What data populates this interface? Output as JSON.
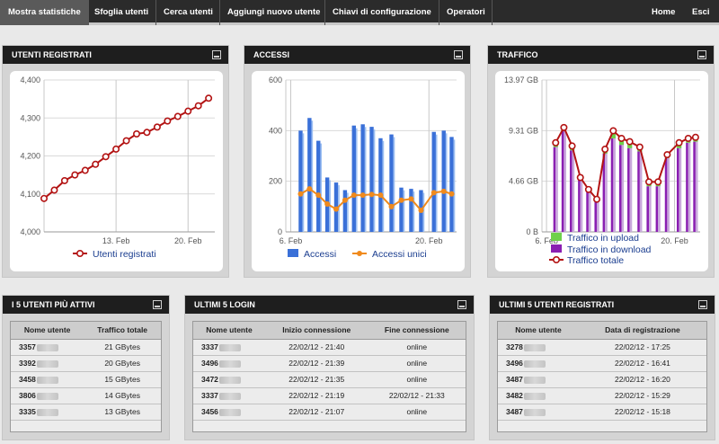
{
  "nav": {
    "items": [
      "Mostra statistiche",
      "Sfoglia utenti",
      "Cerca utenti",
      "Aggiungi nuovo utente",
      "Chiavi di configurazione",
      "Operatori"
    ],
    "right": [
      "Home",
      "Esci"
    ]
  },
  "panels": {
    "registered": {
      "title": "UTENTI REGISTRATI"
    },
    "access": {
      "title": "ACCESSI"
    },
    "traffic": {
      "title": "TRAFFICO"
    },
    "active": {
      "title": "I 5 UTENTI PIÙ ATTIVI"
    },
    "logins": {
      "title": "ULTIMI 5 LOGIN"
    },
    "newusers": {
      "title": "ULTIMI 5 UTENTI REGISTRATI"
    }
  },
  "chart_data": [
    {
      "id": "registered",
      "type": "line",
      "yticks": [
        "4,400",
        "4,300",
        "4,200",
        "4,100",
        "4,000"
      ],
      "ylim": [
        4000,
        4400
      ],
      "xticks": [
        {
          "label": "13. Feb",
          "x": 7
        },
        {
          "label": "20. Feb",
          "x": 14
        }
      ],
      "xlim": [
        0,
        16.6
      ],
      "series": [
        {
          "name": "Utenti registrati",
          "color": "#b31313",
          "x": [
            0,
            1,
            2,
            3,
            4,
            5,
            6,
            7,
            8,
            9,
            10,
            11,
            12,
            13,
            14,
            15,
            16
          ],
          "values": [
            4088,
            4110,
            4135,
            4150,
            4162,
            4178,
            4198,
            4218,
            4240,
            4258,
            4262,
            4276,
            4292,
            4304,
            4318,
            4332,
            4352
          ]
        }
      ],
      "legend": [
        "Utenti registrati"
      ]
    },
    {
      "id": "access",
      "type": "bar",
      "yticks": [
        "600",
        "400",
        "200",
        "0"
      ],
      "ylim": [
        0,
        600
      ],
      "xticks": [
        {
          "label": "6. Feb",
          "x": 0
        },
        {
          "label": "20. Feb",
          "x": 14
        }
      ],
      "xlim": [
        -0.5,
        16.8
      ],
      "series": [
        {
          "name": "Accessi",
          "color": "#3a70d8",
          "x": [
            1,
            1.9,
            2.8,
            3.7,
            4.6,
            5.5,
            6.4,
            7.3,
            8.2,
            9.1,
            10.2,
            11.2,
            12.2,
            13.2,
            14.5,
            15.5,
            16.3
          ],
          "values": [
            400,
            450,
            360,
            215,
            195,
            165,
            420,
            425,
            415,
            370,
            385,
            175,
            170,
            165,
            395,
            400,
            375
          ]
        },
        {
          "name": "Accessi unici",
          "color": "#f08a1c",
          "x": [
            1,
            1.9,
            2.8,
            3.7,
            4.6,
            5.5,
            6.4,
            7.3,
            8.2,
            9.1,
            10.2,
            11.2,
            12.2,
            13.2,
            14.5,
            15.5,
            16.3
          ],
          "values": [
            150,
            170,
            145,
            110,
            90,
            125,
            145,
            145,
            148,
            145,
            100,
            125,
            130,
            85,
            155,
            160,
            150
          ]
        }
      ],
      "legend": [
        "Accessi",
        "Accessi unici"
      ]
    },
    {
      "id": "traffic",
      "type": "line",
      "yticks": [
        "13.97 GB",
        "9.31 GB",
        "4.66 GB",
        "0 B"
      ],
      "ylim": [
        0,
        13.97
      ],
      "xticks": [
        {
          "label": "6. Feb",
          "x": 0
        },
        {
          "label": "20. Feb",
          "x": 14
        }
      ],
      "xlim": [
        -0.5,
        16.8
      ],
      "series": [
        {
          "name": "Traffico in upload",
          "color": "#6ed14a",
          "x": [
            1,
            1.9,
            2.8,
            3.7,
            4.6,
            5.5,
            6.4,
            7.3,
            8.2,
            9.1,
            10.2,
            11.2,
            12.2,
            13.2,
            14.5,
            15.5,
            16.3
          ],
          "values": [
            0.4,
            0.5,
            0.4,
            0.3,
            0.3,
            0.2,
            0.4,
            0.5,
            0.4,
            0.4,
            0.4,
            0.3,
            0.3,
            0.3,
            0.4,
            0.4,
            0.4
          ]
        },
        {
          "name": "Traffico in download",
          "color": "#8a1fb2",
          "x": [
            1,
            1.9,
            2.8,
            3.7,
            4.6,
            5.5,
            6.4,
            7.3,
            8.2,
            9.1,
            10.2,
            11.2,
            12.2,
            13.2,
            14.5,
            15.5,
            16.3
          ],
          "values": [
            7.8,
            9.3,
            7.5,
            4.8,
            3.7,
            2.9,
            7.2,
            8.6,
            8.0,
            7.7,
            7.4,
            4.2,
            4.2,
            6.8,
            7.7,
            8.2,
            8.3
          ]
        },
        {
          "name": "Traffico totale",
          "color": "#b31313",
          "x": [
            1,
            1.9,
            2.8,
            3.7,
            4.6,
            5.5,
            6.4,
            7.3,
            8.2,
            9.1,
            10.2,
            11.2,
            12.2,
            13.2,
            14.5,
            15.5,
            16.3
          ],
          "values": [
            8.2,
            9.6,
            7.9,
            5.0,
            3.9,
            3.0,
            7.6,
            9.3,
            8.6,
            8.3,
            7.8,
            4.6,
            4.6,
            7.1,
            8.2,
            8.6,
            8.7
          ]
        }
      ],
      "legend": [
        "Traffico in upload",
        "Traffico in download",
        "Traffico totale"
      ]
    }
  ],
  "tables": {
    "active": {
      "headers": [
        "Nome utente",
        "Traffico totale"
      ],
      "rows": [
        [
          "3357",
          "21 GBytes"
        ],
        [
          "3392",
          "20 GBytes"
        ],
        [
          "3458",
          "15 GBytes"
        ],
        [
          "3806",
          "14 GBytes"
        ],
        [
          "3335",
          "13 GBytes"
        ]
      ]
    },
    "logins": {
      "headers": [
        "Nome utente",
        "Inizio connessione",
        "Fine connessione"
      ],
      "rows": [
        [
          "3337",
          "22/02/12 - 21:40",
          "online"
        ],
        [
          "3496",
          "22/02/12 - 21:39",
          "online"
        ],
        [
          "3472",
          "22/02/12 - 21:35",
          "online"
        ],
        [
          "3337",
          "22/02/12 - 21:19",
          "22/02/12 - 21:33"
        ],
        [
          "3456",
          "22/02/12 - 21:07",
          "online"
        ]
      ]
    },
    "newusers": {
      "headers": [
        "Nome utente",
        "Data di registrazione"
      ],
      "rows": [
        [
          "3278",
          "22/02/12 - 17:25"
        ],
        [
          "3496",
          "22/02/12 - 16:41"
        ],
        [
          "3487",
          "22/02/12 - 16:20"
        ],
        [
          "3482",
          "22/02/12 - 15:29"
        ],
        [
          "3487",
          "22/02/12 - 15:18"
        ]
      ]
    }
  }
}
